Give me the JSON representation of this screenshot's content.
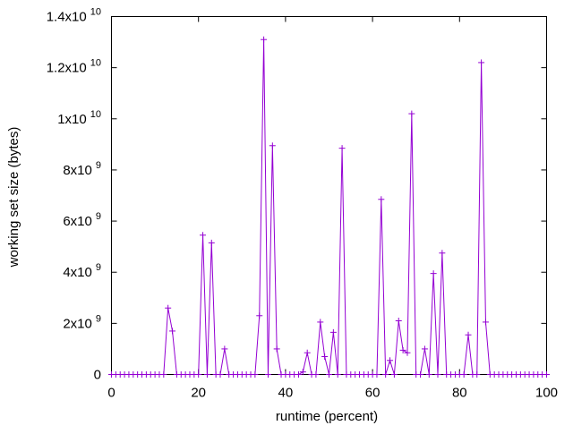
{
  "chart_data": {
    "type": "line",
    "xlabel": "runtime (percent)",
    "ylabel": "working set size (bytes)",
    "xlim": [
      0,
      100
    ],
    "ylim": [
      0,
      14000000000
    ],
    "x_ticks": [
      0,
      20,
      40,
      60,
      80,
      100
    ],
    "y_ticks": [
      {
        "value": 0,
        "mant": "0",
        "exp": ""
      },
      {
        "value": 2000000000,
        "mant": "2x10",
        "exp": "9"
      },
      {
        "value": 4000000000,
        "mant": "4x10",
        "exp": "9"
      },
      {
        "value": 6000000000,
        "mant": "6x10",
        "exp": "9"
      },
      {
        "value": 8000000000,
        "mant": "8x10",
        "exp": "9"
      },
      {
        "value": 10000000000,
        "mant": "1x10",
        "exp": "10"
      },
      {
        "value": 12000000000,
        "mant": "1.2x10",
        "exp": "10"
      },
      {
        "value": 14000000000,
        "mant": "1.4x10",
        "exp": "10"
      }
    ],
    "grid": false,
    "series": [
      {
        "color": "#9400d3",
        "marker": "plus",
        "x": [
          0,
          1,
          2,
          3,
          4,
          5,
          6,
          7,
          8,
          9,
          10,
          11,
          12,
          13,
          14,
          15,
          16,
          17,
          18,
          19,
          20,
          21,
          22,
          23,
          24,
          25,
          26,
          27,
          28,
          29,
          30,
          31,
          32,
          33,
          34,
          35,
          36,
          37,
          38,
          39,
          40,
          41,
          42,
          43,
          44,
          45,
          46,
          47,
          48,
          49,
          50,
          51,
          52,
          53,
          54,
          55,
          56,
          57,
          58,
          59,
          60,
          61,
          62,
          63,
          64,
          65,
          66,
          67,
          68,
          69,
          70,
          71,
          72,
          73,
          74,
          75,
          76,
          77,
          78,
          79,
          80,
          81,
          82,
          83,
          84,
          85,
          86,
          87,
          88,
          89,
          90,
          91,
          92,
          93,
          94,
          95,
          96,
          97,
          98,
          99,
          100
        ],
        "y": [
          0,
          0,
          0,
          0,
          0,
          0,
          0,
          0,
          0,
          0,
          0,
          0,
          0,
          2600000000,
          1700000000,
          0,
          0,
          0,
          0,
          0,
          0,
          5450000000,
          0,
          5150000000,
          0,
          0,
          1000000000,
          0,
          0,
          0,
          0,
          0,
          0,
          0,
          2300000000,
          13100000000,
          0,
          8950000000,
          1000000000,
          0,
          0,
          0,
          0,
          0,
          100000000,
          850000000,
          0,
          0,
          2050000000,
          700000000,
          0,
          1650000000,
          0,
          8850000000,
          0,
          0,
          0,
          0,
          0,
          0,
          0,
          0,
          6850000000,
          0,
          550000000,
          0,
          2100000000,
          950000000,
          850000000,
          10200000000,
          0,
          0,
          1000000000,
          0,
          3950000000,
          0,
          4750000000,
          0,
          0,
          0,
          0,
          0,
          1550000000,
          0,
          0,
          12200000000,
          2050000000,
          0,
          0,
          0,
          0,
          0,
          0,
          0,
          0,
          0,
          0,
          0,
          0,
          0,
          0
        ]
      }
    ]
  }
}
